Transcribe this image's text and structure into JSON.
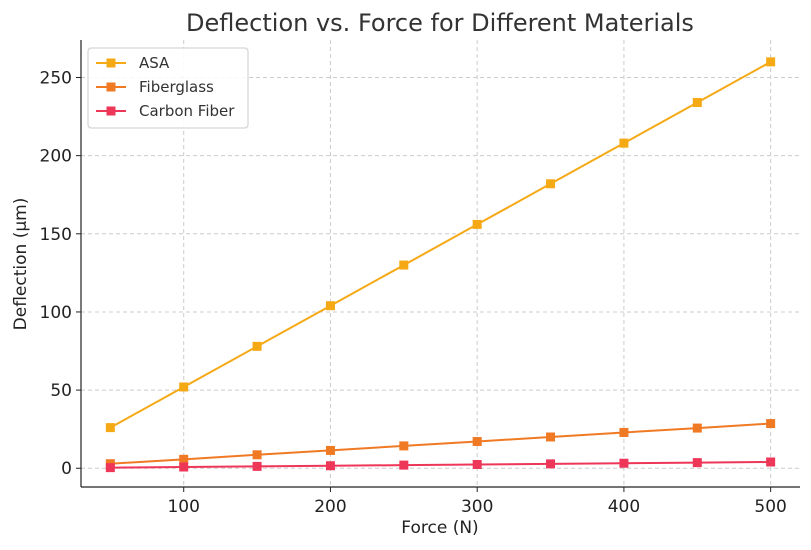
{
  "chart_data": {
    "type": "line",
    "title": "Deflection vs. Force for Different Materials",
    "xlabel": "Force (N)",
    "ylabel": "Deflection (µm)",
    "xlim": [
      30,
      520
    ],
    "ylim": [
      -12,
      274
    ],
    "xticks": [
      100,
      200,
      300,
      400,
      500
    ],
    "yticks": [
      0,
      50,
      100,
      150,
      200,
      250
    ],
    "grid": true,
    "legend_position": "top-left",
    "x": [
      50,
      100,
      150,
      200,
      250,
      300,
      350,
      400,
      450,
      500
    ],
    "series": [
      {
        "name": "ASA",
        "color": "#f5a915",
        "marker": "square",
        "values": [
          26,
          52,
          78,
          104,
          130,
          156,
          182,
          208,
          234,
          260
        ]
      },
      {
        "name": "Fiberglass",
        "color": "#f07a24",
        "marker": "square",
        "values": [
          2.9,
          5.7,
          8.6,
          11.4,
          14.3,
          17.1,
          20.0,
          22.9,
          25.7,
          28.6
        ]
      },
      {
        "name": "Carbon Fiber",
        "color": "#ee3658",
        "marker": "square",
        "values": [
          0.4,
          0.8,
          1.2,
          1.6,
          2.0,
          2.4,
          2.8,
          3.2,
          3.6,
          4.0
        ]
      }
    ]
  }
}
